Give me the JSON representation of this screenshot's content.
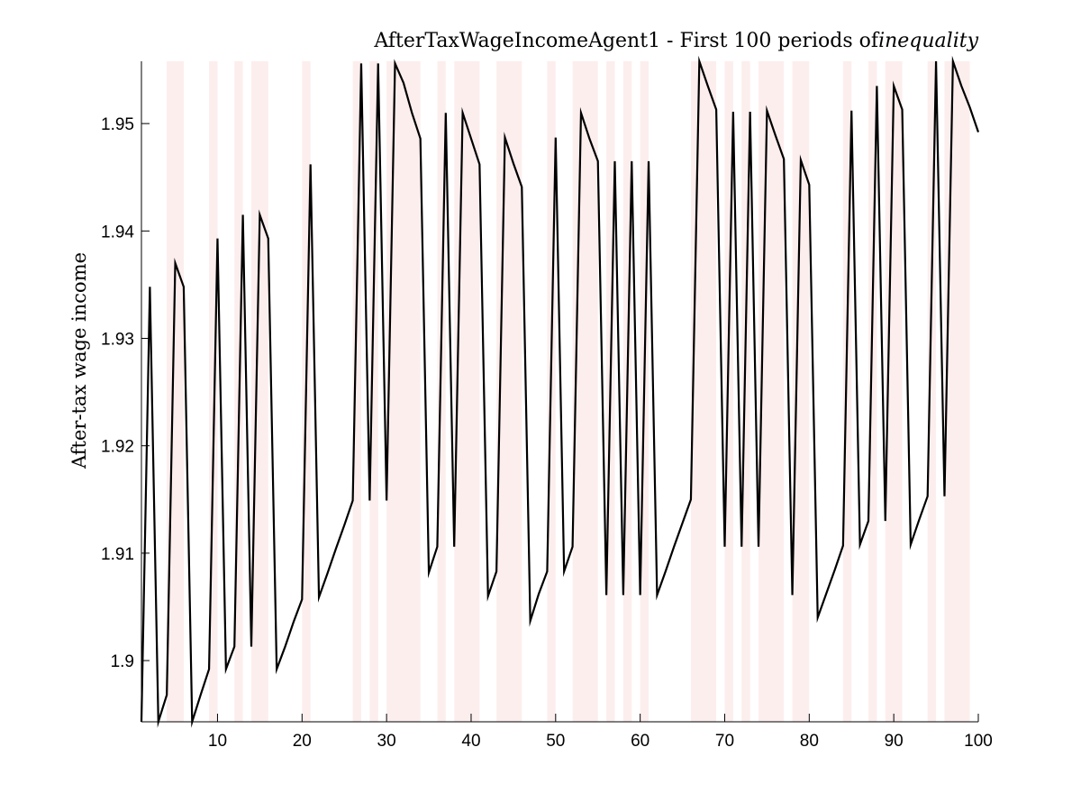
{
  "chart_data": {
    "type": "line",
    "title": "AfterTaxWageIncomeAgent1 - First 100 periods of",
    "title_emphasis": "inequality",
    "xlabel": "",
    "ylabel": "After-tax wage income",
    "xlim": [
      1,
      100
    ],
    "ylim": [
      1.8943,
      1.9558
    ],
    "x_ticks": [
      10,
      20,
      30,
      40,
      50,
      60,
      70,
      80,
      90,
      100
    ],
    "y_ticks": [
      1.9,
      1.91,
      1.92,
      1.93,
      1.94,
      1.95
    ],
    "y_tick_labels": [
      "1.9",
      "1.91",
      "1.92",
      "1.93",
      "1.94",
      "1.95"
    ],
    "grid": false,
    "legend": "none",
    "colors": {
      "line": "#000000",
      "shading": "#fdeeee",
      "axes": "#000000",
      "background": "#ffffff"
    },
    "shaded_periods": [
      [
        4,
        6
      ],
      [
        9,
        10
      ],
      [
        12,
        13
      ],
      [
        14,
        16
      ],
      [
        20,
        21
      ],
      [
        26,
        27
      ],
      [
        28,
        29
      ],
      [
        30,
        34
      ],
      [
        36,
        37
      ],
      [
        38,
        41
      ],
      [
        43,
        46
      ],
      [
        49,
        50
      ],
      [
        52,
        55
      ],
      [
        56,
        57
      ],
      [
        58,
        59
      ],
      [
        60,
        61
      ],
      [
        66,
        69
      ],
      [
        70,
        71
      ],
      [
        72,
        73
      ],
      [
        74,
        77
      ],
      [
        78,
        80
      ],
      [
        84,
        85
      ],
      [
        87,
        88
      ],
      [
        89,
        91
      ],
      [
        94,
        95
      ],
      [
        96,
        99
      ]
    ],
    "series": [
      {
        "x": [
          1,
          2,
          3,
          4,
          5,
          6,
          7,
          8,
          9,
          10,
          11,
          12,
          13,
          14,
          15,
          16,
          17,
          18,
          19,
          20,
          21,
          22,
          23,
          24,
          25,
          26,
          27,
          28,
          29,
          30,
          31,
          32,
          33,
          34,
          35,
          36,
          37,
          38,
          39,
          40,
          41,
          42,
          43,
          44,
          45,
          46,
          47,
          48,
          49,
          50,
          51,
          52,
          53,
          54,
          55,
          56,
          57,
          58,
          59,
          60,
          61,
          62,
          63,
          64,
          65,
          66,
          67,
          68,
          69,
          70,
          71,
          72,
          73,
          74,
          75,
          76,
          77,
          78,
          79,
          80,
          81,
          82,
          83,
          84,
          85,
          86,
          87,
          88,
          89,
          90,
          91,
          92,
          93,
          94,
          95,
          96,
          97,
          98,
          99,
          100
        ],
        "values": [
          1.8943,
          1.9348,
          1.8943,
          1.8968,
          1.937,
          1.9348,
          1.8943,
          1.8968,
          1.8992,
          1.9393,
          1.8992,
          1.9013,
          1.9415,
          1.9013,
          1.9415,
          1.9393,
          1.8992,
          1.9013,
          1.9036,
          1.9057,
          1.9462,
          1.9059,
          1.9081,
          1.9104,
          1.9126,
          1.9149,
          1.9556,
          1.9149,
          1.9556,
          1.9149,
          1.9556,
          1.9538,
          1.951,
          1.9486,
          1.9082,
          1.9106,
          1.951,
          1.9106,
          1.951,
          1.9486,
          1.9462,
          1.906,
          1.9083,
          1.9487,
          1.9463,
          1.9441,
          1.9037,
          1.9062,
          1.9083,
          1.9487,
          1.9083,
          1.9106,
          1.951,
          1.9486,
          1.9465,
          1.9061,
          1.9465,
          1.9061,
          1.9465,
          1.9061,
          1.9465,
          1.9061,
          1.9083,
          1.9106,
          1.9128,
          1.915,
          1.9558,
          1.9535,
          1.9513,
          1.9106,
          1.9511,
          1.9106,
          1.9511,
          1.9106,
          1.9512,
          1.9489,
          1.9467,
          1.9061,
          1.9466,
          1.9443,
          1.904,
          1.9062,
          1.9084,
          1.9107,
          1.9512,
          1.9108,
          1.913,
          1.9535,
          1.913,
          1.9535,
          1.9513,
          1.9108,
          1.9131,
          1.9153,
          1.9558,
          1.9153,
          1.9558,
          1.9535,
          1.9515,
          1.9492
        ]
      }
    ]
  }
}
